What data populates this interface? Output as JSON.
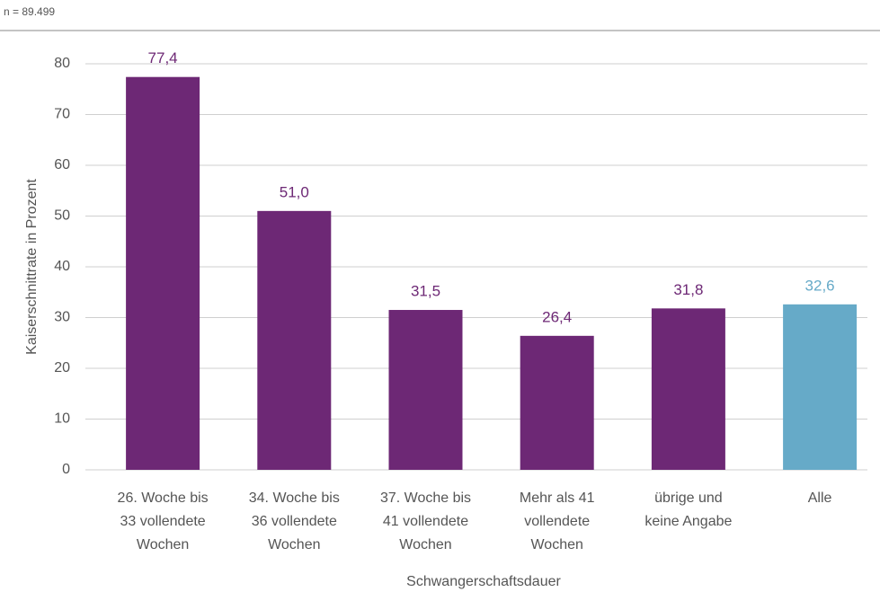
{
  "chart_data": {
    "type": "bar",
    "note": "n = 89.499",
    "ylabel": "Kaiserschnittrate in Prozent",
    "xlabel": "Schwangerschaftsdauer",
    "categories": [
      [
        "26. Woche bis",
        "33 vollendete",
        "Wochen"
      ],
      [
        "34. Woche bis",
        "36 vollendete",
        "Wochen"
      ],
      [
        "37. Woche bis",
        "41 vollendete",
        "Wochen"
      ],
      [
        "Mehr als 41",
        "vollendete",
        "Wochen"
      ],
      [
        "übrige und",
        "keine Angabe"
      ],
      [
        "Alle"
      ]
    ],
    "values": [
      77.4,
      51.0,
      31.5,
      26.4,
      31.8,
      32.6
    ],
    "value_labels": [
      "77,4",
      "51,0",
      "31,5",
      "26,4",
      "31,8",
      "32,6"
    ],
    "colors": [
      "#6d2875",
      "#6d2875",
      "#6d2875",
      "#6d2875",
      "#6d2875",
      "#66aac8"
    ],
    "ylim": [
      0,
      80
    ],
    "yticks": [
      0,
      10,
      20,
      30,
      40,
      50,
      60,
      70,
      80
    ],
    "grid": true
  }
}
